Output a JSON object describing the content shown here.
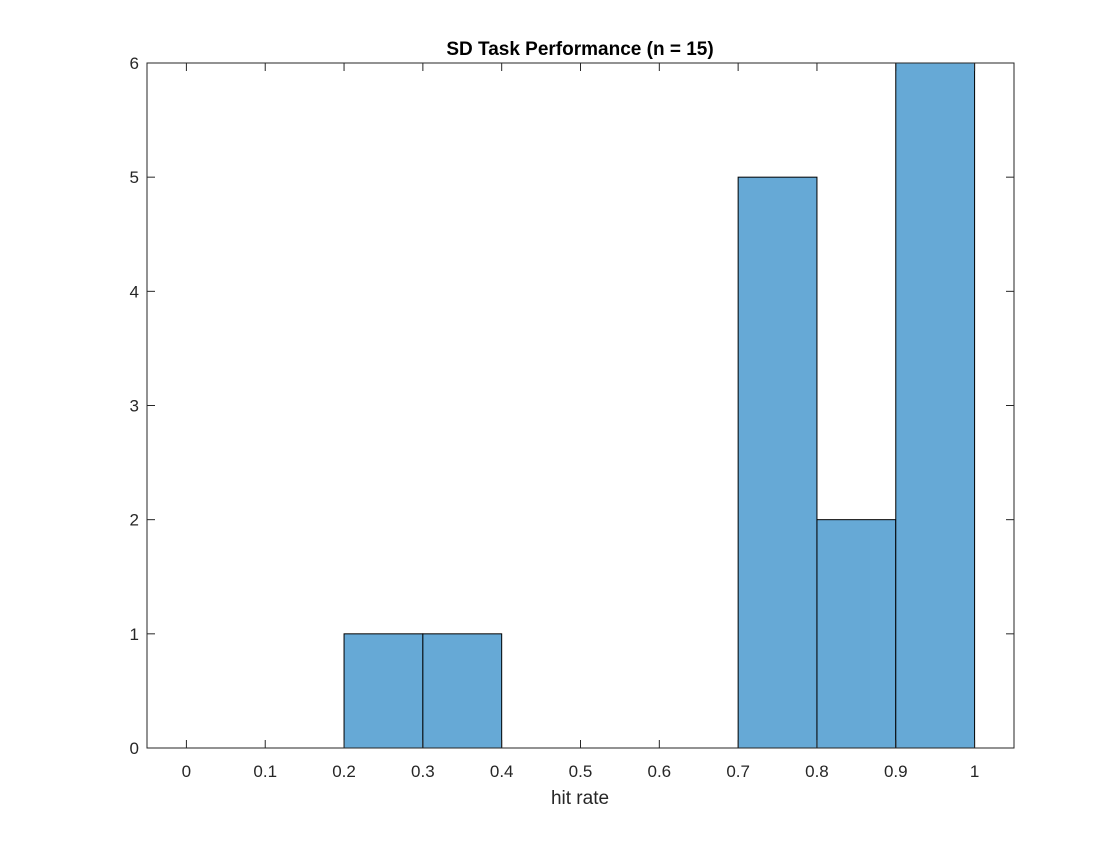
{
  "chart_data": {
    "type": "bar",
    "title": "SD Task Performance (n = 15)",
    "xlabel": "hit rate",
    "ylabel": "",
    "xlim": [
      -0.05,
      1.05
    ],
    "ylim": [
      0,
      6
    ],
    "xticks": [
      0,
      0.1,
      0.2,
      0.3,
      0.4,
      0.5,
      0.6,
      0.7,
      0.8,
      0.9,
      1
    ],
    "xtick_labels": [
      "0",
      "0.1",
      "0.2",
      "0.3",
      "0.4",
      "0.5",
      "0.6",
      "0.7",
      "0.8",
      "0.9",
      "1"
    ],
    "yticks": [
      0,
      1,
      2,
      3,
      4,
      5,
      6
    ],
    "ytick_labels": [
      "0",
      "1",
      "2",
      "3",
      "4",
      "5",
      "6"
    ],
    "bins": [
      {
        "from": 0.2,
        "to": 0.3,
        "count": 1
      },
      {
        "from": 0.3,
        "to": 0.4,
        "count": 1
      },
      {
        "from": 0.7,
        "to": 0.8,
        "count": 5
      },
      {
        "from": 0.8,
        "to": 0.9,
        "count": 2
      },
      {
        "from": 0.9,
        "to": 1.0,
        "count": 6
      }
    ],
    "bar_color": "#66a9d6",
    "edge_color": "#000000",
    "grid": false,
    "legend": "none"
  }
}
